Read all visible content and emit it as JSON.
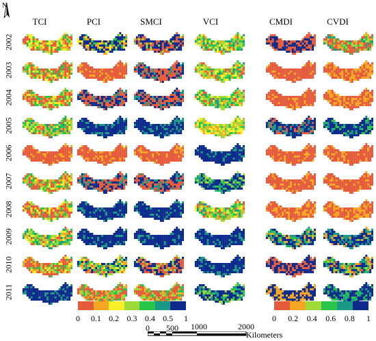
{
  "north_label": "N",
  "columns": [
    "TCI",
    "PCI",
    "SMCI",
    "VCI",
    "CMDI",
    "CVDI"
  ],
  "years": [
    "2002",
    "2003",
    "2004",
    "2005",
    "2006",
    "2007",
    "2008",
    "2009",
    "2010",
    "2011"
  ],
  "palette_left": [
    "#e45c3c",
    "#f5a623",
    "#f6ef2a",
    "#9ed93a",
    "#29c44a",
    "#1a9a86",
    "#0b2a8c"
  ],
  "palette_right": [
    "#e45c3c",
    "#f5a623",
    "#9ed93a",
    "#29c44a",
    "#1a9a86",
    "#0b2a8c"
  ],
  "legend_left": {
    "ticks": [
      "0",
      "0.1",
      "0.2",
      "0.3",
      "0.4",
      "0.5",
      "1"
    ]
  },
  "legend_right": {
    "ticks": [
      "0",
      "0.2",
      "0.4",
      "0.6",
      "0.8",
      "1"
    ]
  },
  "scalebar": {
    "labels_top": [
      "1000",
      "2000"
    ],
    "labels_bottom": [
      "0",
      "500"
    ],
    "unit": "Kilometers"
  },
  "panel_dominant": {
    "TCI": [
      "mixed-red-yellow",
      "mixed-red",
      "mixed-red",
      "mixed-green",
      "red",
      "mixed-red",
      "mixed-red",
      "mixed-green",
      "mixed-red",
      "blue"
    ],
    "PCI": [
      "blue-yellow",
      "red",
      "red-blue",
      "blue",
      "red",
      "red-blue",
      "blue",
      "blue",
      "mixed",
      "red-green"
    ],
    "SMCI": [
      "blue-red",
      "red-blue",
      "red-blue",
      "blue",
      "red",
      "red-blue",
      "blue",
      "blue",
      "blue-red",
      "red-green"
    ],
    "VCI": [
      "mixed-green",
      "mixed-green",
      "mixed-green",
      "mixed-yellow",
      "blue",
      "mixed-blue",
      "mixed-green",
      "blue",
      "blue",
      "mixed-blue"
    ],
    "CMDI": [
      "red-blue",
      "red",
      "red",
      "teal-blue",
      "red",
      "red",
      "red-yellow",
      "blue-green",
      "red-blue",
      "orange-blue"
    ],
    "CVDI": [
      "mixed-red",
      "red-yellow",
      "red-yellow",
      "teal",
      "red",
      "red",
      "red-yellow",
      "green-blue",
      "mixed",
      "teal"
    ]
  }
}
